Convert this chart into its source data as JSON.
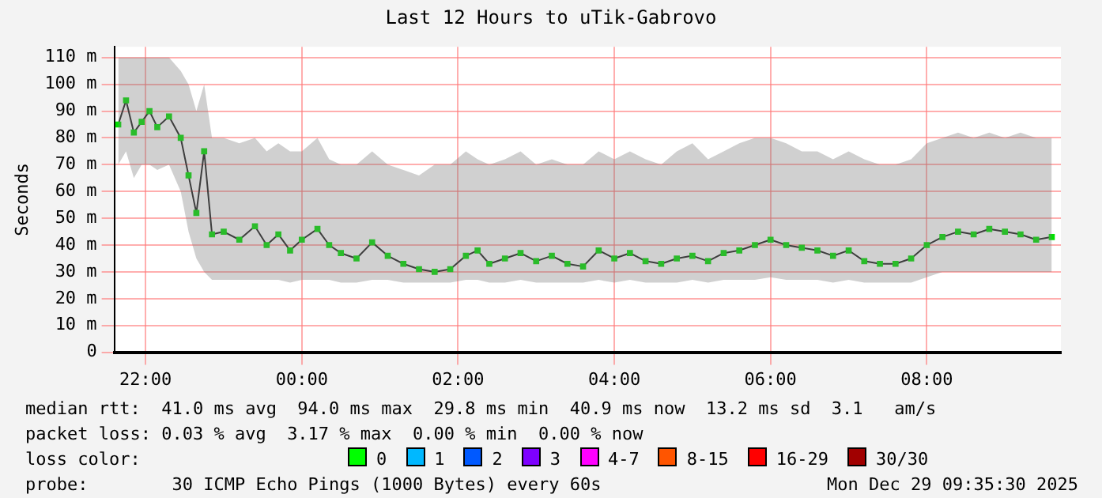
{
  "chart_data": {
    "type": "line",
    "title": "Last 12 Hours to uTik-Gabrovo",
    "ylabel": "Seconds",
    "xlim": [
      "2025-12-28T21:36",
      "2025-12-29T09:43"
    ],
    "ylim": [
      0,
      114
    ],
    "xticks": [
      {
        "value": "2025-12-28T22:00",
        "label": "22:00"
      },
      {
        "value": "2025-12-29T00:00",
        "label": "00:00"
      },
      {
        "value": "2025-12-29T02:00",
        "label": "02:00"
      },
      {
        "value": "2025-12-29T04:00",
        "label": "04:00"
      },
      {
        "value": "2025-12-29T06:00",
        "label": "06:00"
      },
      {
        "value": "2025-12-29T08:00",
        "label": "08:00"
      }
    ],
    "yticks": [
      0,
      {
        "value": 10,
        "label": "10 m"
      },
      {
        "value": 20,
        "label": "20 m"
      },
      {
        "value": 30,
        "label": "30 m"
      },
      {
        "value": 40,
        "label": "40 m"
      },
      {
        "value": 50,
        "label": "50 m"
      },
      {
        "value": 60,
        "label": "60 m"
      },
      {
        "value": 70,
        "label": "70 m"
      },
      {
        "value": 80,
        "label": "80 m"
      },
      {
        "value": 90,
        "label": "90 m"
      },
      {
        "value": 100,
        "label": "100 m"
      },
      {
        "value": 110,
        "label": "110 m"
      }
    ],
    "grid": true,
    "legend": false,
    "marker": "square",
    "line_style": "solid",
    "series": [
      {
        "color": "#00e000",
        "x": [
          "2025-12-28T21:39",
          "2025-12-28T21:45",
          "2025-12-28T21:51",
          "2025-12-28T21:57",
          "2025-12-28T22:03",
          "2025-12-28T22:09",
          "2025-12-28T22:18",
          "2025-12-28T22:27",
          "2025-12-28T22:33",
          "2025-12-28T22:39",
          "2025-12-28T22:45",
          "2025-12-28T22:51",
          "2025-12-28T23:00",
          "2025-12-28T23:12",
          "2025-12-28T23:24",
          "2025-12-28T23:33",
          "2025-12-28T23:42",
          "2025-12-28T23:51",
          "2025-12-29T00:00",
          "2025-12-29T00:12",
          "2025-12-29T00:21",
          "2025-12-29T00:30",
          "2025-12-29T00:42",
          "2025-12-29T00:54",
          "2025-12-29T01:06",
          "2025-12-29T01:18",
          "2025-12-29T01:30",
          "2025-12-29T01:42",
          "2025-12-29T01:54",
          "2025-12-29T02:06",
          "2025-12-29T02:15",
          "2025-12-29T02:24",
          "2025-12-29T02:36",
          "2025-12-29T02:48",
          "2025-12-29T03:00",
          "2025-12-29T03:12",
          "2025-12-29T03:24",
          "2025-12-29T03:36",
          "2025-12-29T03:48",
          "2025-12-29T04:00",
          "2025-12-29T04:12",
          "2025-12-29T04:24",
          "2025-12-29T04:36",
          "2025-12-29T04:48",
          "2025-12-29T05:00",
          "2025-12-29T05:12",
          "2025-12-29T05:24",
          "2025-12-29T05:36",
          "2025-12-29T05:48",
          "2025-12-29T06:00",
          "2025-12-29T06:12",
          "2025-12-29T06:24",
          "2025-12-29T06:36",
          "2025-12-29T06:48",
          "2025-12-29T07:00",
          "2025-12-29T07:12",
          "2025-12-29T07:24",
          "2025-12-29T07:36",
          "2025-12-29T07:48",
          "2025-12-29T08:00",
          "2025-12-29T08:12",
          "2025-12-29T08:24",
          "2025-12-29T08:36",
          "2025-12-29T08:48",
          "2025-12-29T09:00",
          "2025-12-29T09:12",
          "2025-12-29T09:24",
          "2025-12-29T09:36"
        ],
        "values": [
          85,
          94,
          82,
          86,
          90,
          84,
          88,
          80,
          66,
          52,
          75,
          44,
          45,
          42,
          47,
          40,
          44,
          38,
          42,
          46,
          40,
          37,
          35,
          41,
          36,
          33,
          31,
          30,
          31,
          36,
          38,
          33,
          35,
          37,
          34,
          36,
          33,
          32,
          38,
          35,
          37,
          34,
          33,
          35,
          36,
          34,
          37,
          38,
          40,
          42,
          40,
          39,
          38,
          36,
          38,
          34,
          33,
          33,
          35,
          40,
          43,
          45,
          44,
          46,
          45,
          44,
          42,
          43
        ],
        "lower": [
          70,
          75,
          65,
          70,
          70,
          68,
          70,
          60,
          45,
          35,
          30,
          27,
          27,
          27,
          27,
          27,
          27,
          26,
          27,
          27,
          27,
          26,
          26,
          27,
          27,
          26,
          26,
          26,
          26,
          27,
          27,
          26,
          26,
          27,
          26,
          26,
          26,
          26,
          27,
          26,
          27,
          26,
          26,
          26,
          27,
          26,
          27,
          27,
          27,
          28,
          27,
          27,
          27,
          26,
          27,
          26,
          26,
          26,
          26,
          28,
          30,
          30,
          30,
          30,
          30,
          30,
          30,
          30
        ],
        "upper": [
          110,
          110,
          110,
          110,
          110,
          110,
          110,
          105,
          100,
          90,
          100,
          80,
          80,
          78,
          80,
          75,
          78,
          75,
          75,
          80,
          72,
          70,
          70,
          75,
          70,
          68,
          66,
          70,
          70,
          75,
          72,
          70,
          72,
          75,
          70,
          72,
          70,
          70,
          75,
          72,
          75,
          72,
          70,
          75,
          78,
          72,
          75,
          78,
          80,
          80,
          78,
          75,
          75,
          72,
          75,
          72,
          70,
          70,
          72,
          78,
          80,
          82,
          80,
          82,
          80,
          82,
          80,
          80
        ]
      }
    ],
    "annotations": [
      "median rtt:  41.0 ms avg  94.0 ms max  29.8 ms min  40.9 ms now  13.2 ms sd  3.1   am/s",
      "packet loss: 0.03 % avg  3.17 % max  0.00 % min  0.00 % now",
      "loss color:",
      "0",
      "1",
      "2",
      "3",
      "4-7",
      "8-15",
      "16-29",
      "30/30",
      "probe:        30 ICMP Echo Pings (1000 Bytes) every 60s",
      "Mon Dec 29 09:35:30 2025"
    ]
  }
}
